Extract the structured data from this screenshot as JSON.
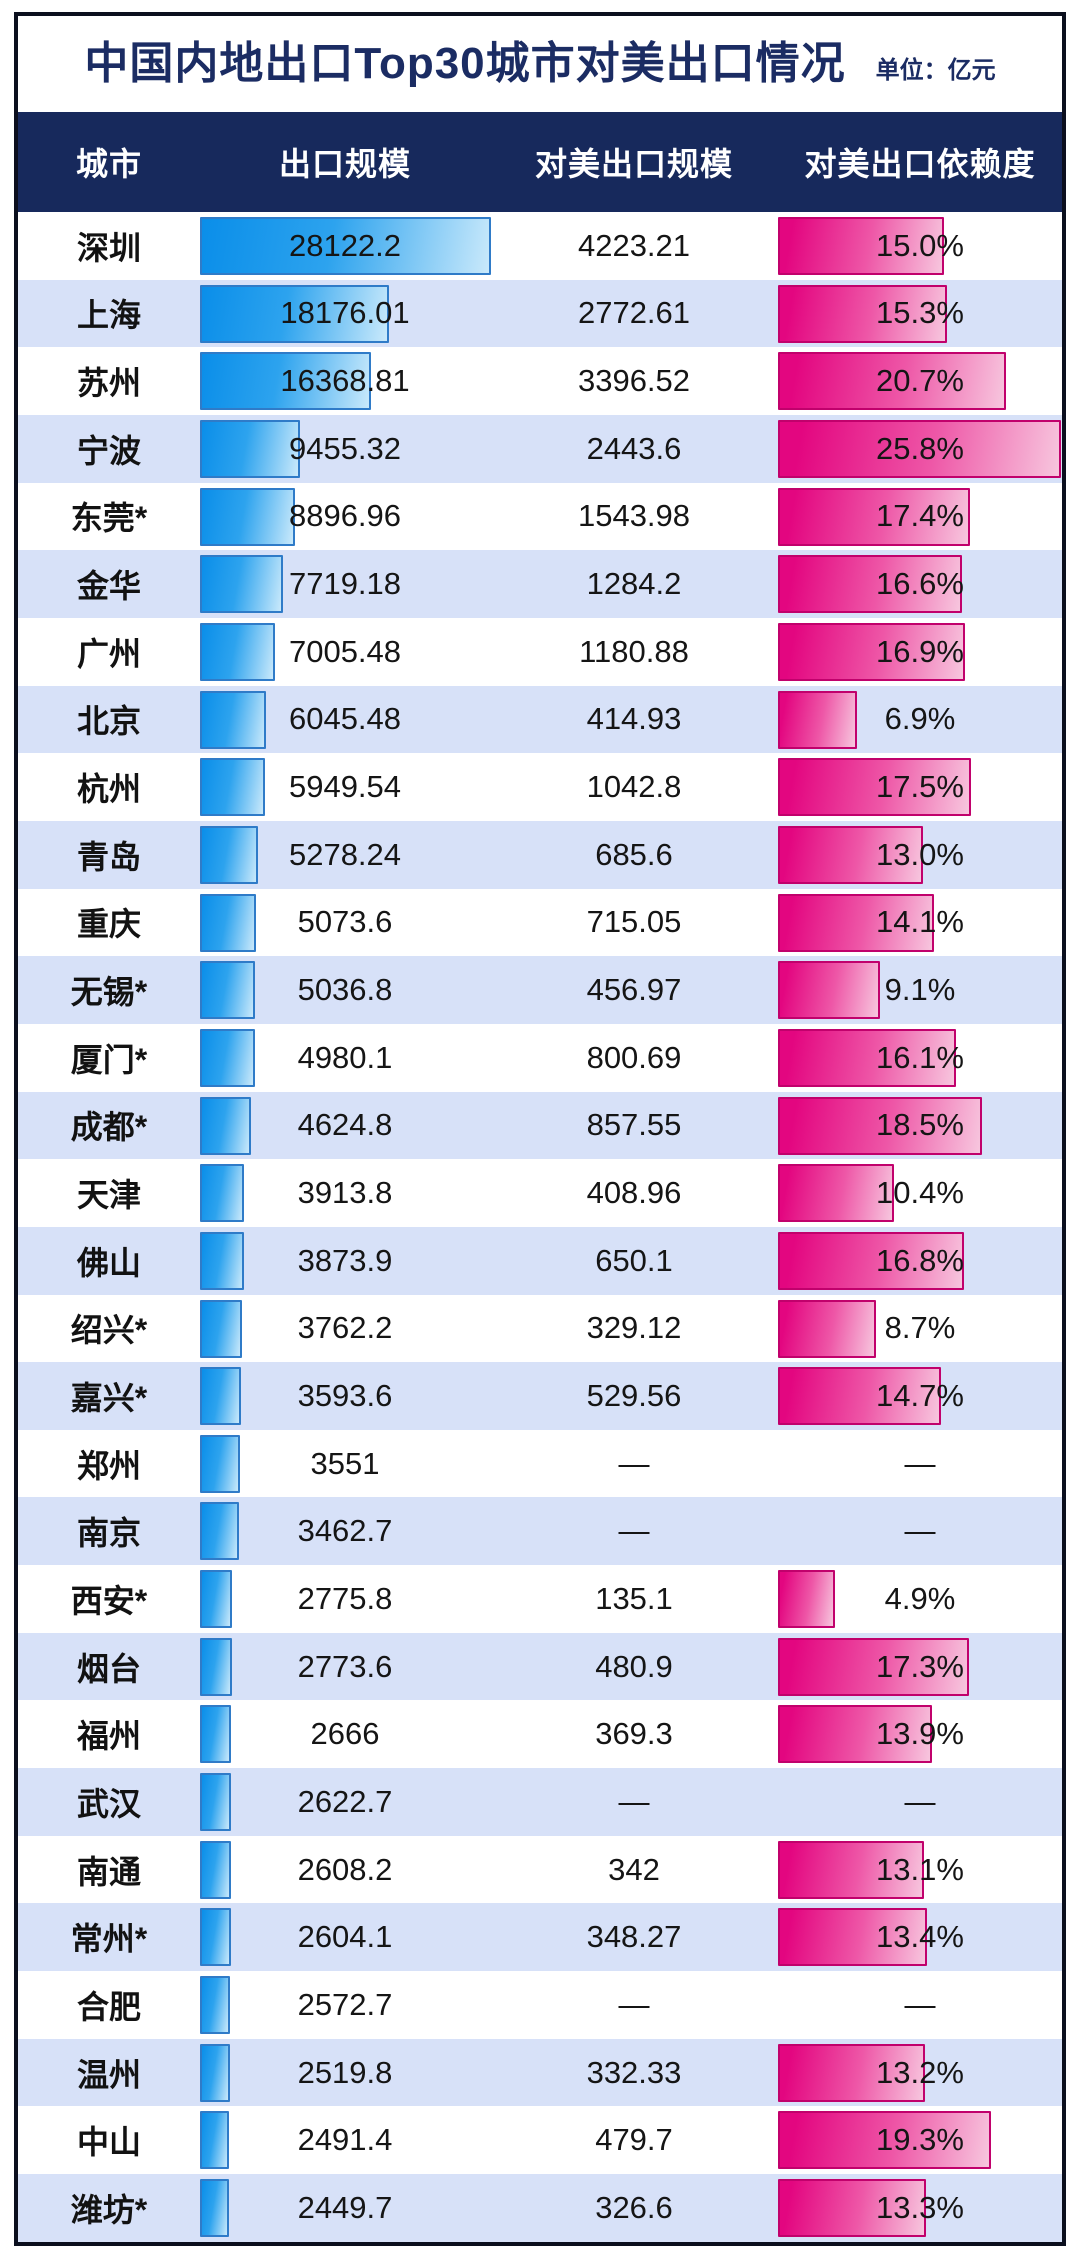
{
  "title": "中国内地出口Top30城市对美出口情况",
  "unit_label": "单位：亿元",
  "colors": {
    "title_navy": "#1b2c63",
    "header_band_navy": "#17295c",
    "alt_row_lavender": "#d7e1f8",
    "export_bar_blue": "#0a8ee9",
    "export_bar_border": "#2f7bc8",
    "dependency_bar_pink": "#e30680",
    "dependency_bar_border": "#c1016c",
    "frame_border": "#0b0f1e"
  },
  "missing_placeholder": "—",
  "chart_data": {
    "type": "bar",
    "title": "中国内地出口Top30城市对美出口情况",
    "unit": "亿元",
    "columns": [
      "城市",
      "出口规模",
      "对美出口规模",
      "对美出口依赖度"
    ],
    "series": [
      {
        "name": "出口规模",
        "color": "#0a8ee9"
      },
      {
        "name": "对美出口依赖度",
        "color": "#e30680"
      }
    ],
    "export_axis_max": 28122.2,
    "dependency_axis_max_pct": 25.8,
    "rows": [
      {
        "city": "深圳",
        "export": 28122.2,
        "export_label": "28122.2",
        "us_export": 4223.21,
        "us_label": "4223.21",
        "dep_pct": 15.0,
        "dep_label": "15.0%"
      },
      {
        "city": "上海",
        "export": 18176.01,
        "export_label": "18176.01",
        "us_export": 2772.61,
        "us_label": "2772.61",
        "dep_pct": 15.3,
        "dep_label": "15.3%"
      },
      {
        "city": "苏州",
        "export": 16368.81,
        "export_label": "16368.81",
        "us_export": 3396.52,
        "us_label": "3396.52",
        "dep_pct": 20.7,
        "dep_label": "20.7%"
      },
      {
        "city": "宁波",
        "export": 9455.32,
        "export_label": "9455.32",
        "us_export": 2443.6,
        "us_label": "2443.6",
        "dep_pct": 25.8,
        "dep_label": "25.8%"
      },
      {
        "city": "东莞*",
        "export": 8896.96,
        "export_label": "8896.96",
        "us_export": 1543.98,
        "us_label": "1543.98",
        "dep_pct": 17.4,
        "dep_label": "17.4%"
      },
      {
        "city": "金华",
        "export": 7719.18,
        "export_label": "7719.18",
        "us_export": 1284.2,
        "us_label": "1284.2",
        "dep_pct": 16.6,
        "dep_label": "16.6%"
      },
      {
        "city": "广州",
        "export": 7005.48,
        "export_label": "7005.48",
        "us_export": 1180.88,
        "us_label": "1180.88",
        "dep_pct": 16.9,
        "dep_label": "16.9%"
      },
      {
        "city": "北京",
        "export": 6045.48,
        "export_label": "6045.48",
        "us_export": 414.93,
        "us_label": "414.93",
        "dep_pct": 6.9,
        "dep_label": "6.9%"
      },
      {
        "city": "杭州",
        "export": 5949.54,
        "export_label": "5949.54",
        "us_export": 1042.8,
        "us_label": "1042.8",
        "dep_pct": 17.5,
        "dep_label": "17.5%"
      },
      {
        "city": "青岛",
        "export": 5278.24,
        "export_label": "5278.24",
        "us_export": 685.6,
        "us_label": "685.6",
        "dep_pct": 13.0,
        "dep_label": "13.0%"
      },
      {
        "city": "重庆",
        "export": 5073.6,
        "export_label": "5073.6",
        "us_export": 715.05,
        "us_label": "715.05",
        "dep_pct": 14.1,
        "dep_label": "14.1%"
      },
      {
        "city": "无锡*",
        "export": 5036.8,
        "export_label": "5036.8",
        "us_export": 456.97,
        "us_label": "456.97",
        "dep_pct": 9.1,
        "dep_label": "9.1%"
      },
      {
        "city": "厦门*",
        "export": 4980.1,
        "export_label": "4980.1",
        "us_export": 800.69,
        "us_label": "800.69",
        "dep_pct": 16.1,
        "dep_label": "16.1%"
      },
      {
        "city": "成都*",
        "export": 4624.8,
        "export_label": "4624.8",
        "us_export": 857.55,
        "us_label": "857.55",
        "dep_pct": 18.5,
        "dep_label": "18.5%"
      },
      {
        "city": "天津",
        "export": 3913.8,
        "export_label": "3913.8",
        "us_export": 408.96,
        "us_label": "408.96",
        "dep_pct": 10.4,
        "dep_label": "10.4%"
      },
      {
        "city": "佛山",
        "export": 3873.9,
        "export_label": "3873.9",
        "us_export": 650.1,
        "us_label": "650.1",
        "dep_pct": 16.8,
        "dep_label": "16.8%"
      },
      {
        "city": "绍兴*",
        "export": 3762.2,
        "export_label": "3762.2",
        "us_export": 329.12,
        "us_label": "329.12",
        "dep_pct": 8.7,
        "dep_label": "8.7%"
      },
      {
        "city": "嘉兴*",
        "export": 3593.6,
        "export_label": "3593.6",
        "us_export": 529.56,
        "us_label": "529.56",
        "dep_pct": 14.7,
        "dep_label": "14.7%"
      },
      {
        "city": "郑州",
        "export": 3551,
        "export_label": "3551",
        "us_export": null,
        "us_label": "—",
        "dep_pct": null,
        "dep_label": "—"
      },
      {
        "city": "南京",
        "export": 3462.7,
        "export_label": "3462.7",
        "us_export": null,
        "us_label": "—",
        "dep_pct": null,
        "dep_label": "—"
      },
      {
        "city": "西安*",
        "export": 2775.8,
        "export_label": "2775.8",
        "us_export": 135.1,
        "us_label": "135.1",
        "dep_pct": 4.9,
        "dep_label": "4.9%"
      },
      {
        "city": "烟台",
        "export": 2773.6,
        "export_label": "2773.6",
        "us_export": 480.9,
        "us_label": "480.9",
        "dep_pct": 17.3,
        "dep_label": "17.3%"
      },
      {
        "city": "福州",
        "export": 2666,
        "export_label": "2666",
        "us_export": 369.3,
        "us_label": "369.3",
        "dep_pct": 13.9,
        "dep_label": "13.9%"
      },
      {
        "city": "武汉",
        "export": 2622.7,
        "export_label": "2622.7",
        "us_export": null,
        "us_label": "—",
        "dep_pct": null,
        "dep_label": "—"
      },
      {
        "city": "南通",
        "export": 2608.2,
        "export_label": "2608.2",
        "us_export": 342,
        "us_label": "342",
        "dep_pct": 13.1,
        "dep_label": "13.1%"
      },
      {
        "city": "常州*",
        "export": 2604.1,
        "export_label": "2604.1",
        "us_export": 348.27,
        "us_label": "348.27",
        "dep_pct": 13.4,
        "dep_label": "13.4%"
      },
      {
        "city": "合肥",
        "export": 2572.7,
        "export_label": "2572.7",
        "us_export": null,
        "us_label": "—",
        "dep_pct": null,
        "dep_label": "—"
      },
      {
        "city": "温州",
        "export": 2519.8,
        "export_label": "2519.8",
        "us_export": 332.33,
        "us_label": "332.33",
        "dep_pct": 13.2,
        "dep_label": "13.2%"
      },
      {
        "city": "中山",
        "export": 2491.4,
        "export_label": "2491.4",
        "us_export": 479.7,
        "us_label": "479.7",
        "dep_pct": 19.3,
        "dep_label": "19.3%"
      },
      {
        "city": "潍坊*",
        "export": 2449.7,
        "export_label": "2449.7",
        "us_export": 326.6,
        "us_label": "326.6",
        "dep_pct": 13.3,
        "dep_label": "13.3%"
      }
    ]
  }
}
